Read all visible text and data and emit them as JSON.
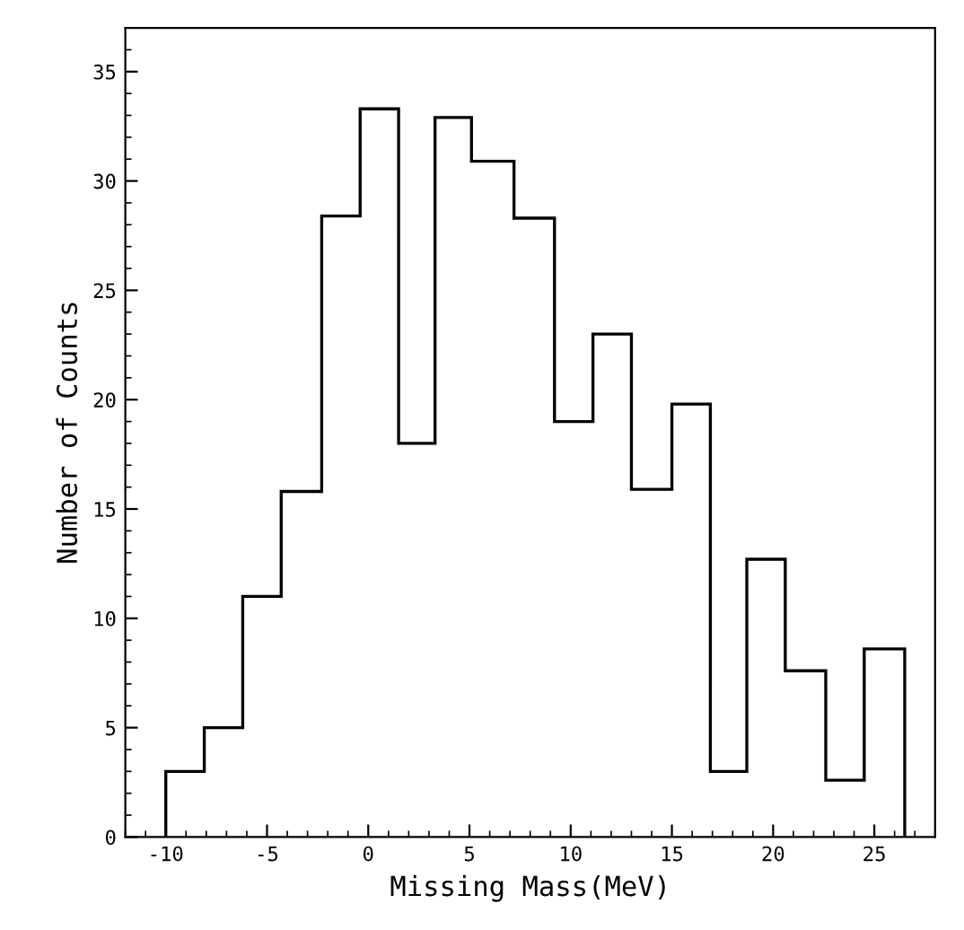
{
  "chart_data": {
    "type": "histogram",
    "xlabel": "Missing Mass(MeV)",
    "ylabel": "Number of Counts",
    "bins": [
      -10,
      -8.1,
      -6.2,
      -4.3,
      -2.3,
      -0.4,
      1.5,
      3.3,
      5.1,
      7.2,
      9.2,
      11.1,
      13.0,
      15.0,
      16.9,
      18.7,
      20.6,
      22.6,
      24.5,
      26.5
    ],
    "values": [
      3,
      5,
      11,
      15.8,
      28.4,
      33.3,
      18,
      32.9,
      30.9,
      28.3,
      19,
      23,
      15.9,
      19.8,
      3,
      12.7,
      7.6,
      2.6,
      8.6
    ],
    "color": "#000000",
    "xlim": [
      -12,
      28
    ],
    "xticks": [
      -10,
      -5,
      0,
      5,
      10,
      15,
      20,
      25
    ],
    "ylim": [
      0,
      37
    ],
    "yticks": [
      0,
      5,
      10,
      15,
      20,
      25,
      30,
      35
    ],
    "grid": false
  }
}
